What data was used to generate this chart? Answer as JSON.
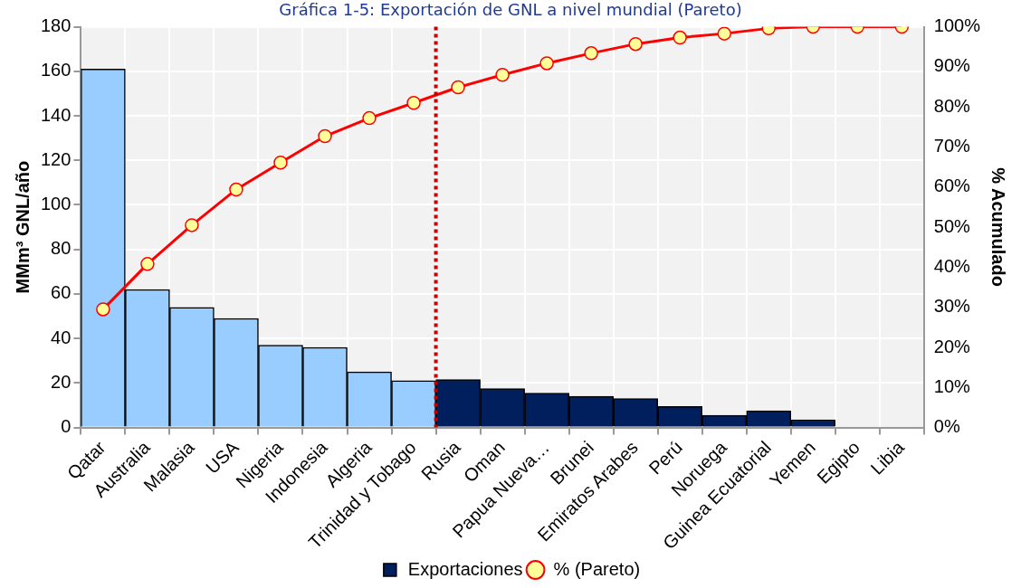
{
  "chart_data": {
    "type": "bar",
    "title": "Gráfica 1-5: Exportación de GNL a nivel mundial (Pareto)",
    "categories": [
      "Qatar",
      "Australia",
      "Malasia",
      "USA",
      "Nigeria",
      "Indonesia",
      "Algeria",
      "Trinidad y Tobago",
      "Rusia",
      "Oman",
      "Papua Nueva…",
      "Brunei",
      "Emiratos Arabes",
      "Perú",
      "Noruega",
      "Guinea Ecuatorial",
      "Yemen",
      "Egipto",
      "Libia"
    ],
    "series": [
      {
        "name": "Exportaciones",
        "type": "bar",
        "color": "#001f5c",
        "colors": [
          "#99ccff",
          "#99ccff",
          "#99ccff",
          "#99ccff",
          "#99ccff",
          "#99ccff",
          "#99ccff",
          "#99ccff",
          "#001f5c",
          "#001f5c",
          "#001f5c",
          "#001f5c",
          "#001f5c",
          "#001f5c",
          "#001f5c",
          "#001f5c",
          "#001f5c",
          "#001f5c",
          "#001f5c"
        ],
        "values": [
          161,
          62,
          54,
          49,
          37,
          36,
          25,
          21,
          21.5,
          17.5,
          15.5,
          14,
          13,
          9.5,
          5.5,
          7.5,
          3.5,
          0,
          0
        ]
      },
      {
        "name": "% (Pareto)",
        "type": "line",
        "axis": "y2",
        "color": "#ff0000",
        "values": [
          29.5,
          40.8,
          50.5,
          59.4,
          66.1,
          72.7,
          77.2,
          81,
          84.9,
          88,
          90.9,
          93.4,
          95.7,
          97.3,
          98.3,
          99.6,
          100,
          100,
          100
        ]
      }
    ],
    "ylabel": "MMm³ GNL/año",
    "y2label": "% Acumulado",
    "ylim": [
      0,
      180
    ],
    "yticks": [
      0,
      20,
      40,
      60,
      80,
      100,
      120,
      140,
      160,
      180
    ],
    "y2lim": [
      0,
      100
    ],
    "y2ticks": [
      {
        "value": 0,
        "label": "0%"
      },
      {
        "value": 10,
        "label": "10%"
      },
      {
        "value": 20,
        "label": "20%"
      },
      {
        "value": 30,
        "label": "30%"
      },
      {
        "value": 40,
        "label": "40%"
      },
      {
        "value": 50,
        "label": "50%"
      },
      {
        "value": 60,
        "label": "60%"
      },
      {
        "value": 70,
        "label": "70%"
      },
      {
        "value": 80,
        "label": "80%"
      },
      {
        "value": 90,
        "label": "90%"
      },
      {
        "value": 100,
        "label": "100%"
      }
    ],
    "ref_lines": [
      {
        "axis": "x",
        "value": "Trinidad y Tobago",
        "color": "#c00000",
        "line_style": "dotted"
      }
    ],
    "grid": true,
    "legend": "bottom",
    "marker": "circle"
  }
}
